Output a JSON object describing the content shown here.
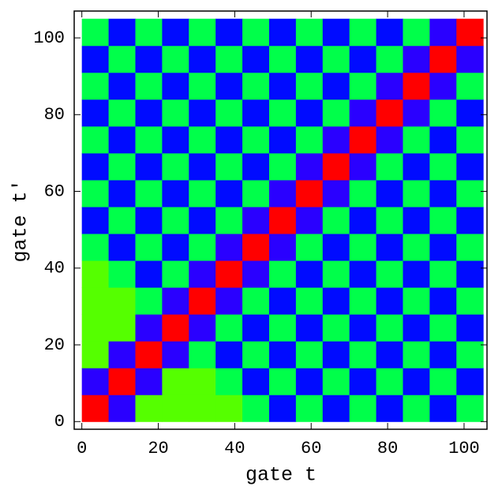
{
  "chart_data": {
    "type": "heatmap",
    "xlabel": "gate t",
    "ylabel": "gate t′",
    "xbins": [
      0,
      7,
      14,
      21,
      28,
      35,
      42,
      49,
      56,
      63,
      70,
      77,
      84,
      91,
      98,
      105
    ],
    "ybins": [
      0,
      7,
      14,
      21,
      28,
      35,
      42,
      49,
      56,
      63,
      70,
      77,
      84,
      91,
      98,
      105
    ],
    "values": [
      [
        1,
        0,
        0.6,
        0.6,
        0.6,
        0.6,
        0.45,
        0.05,
        0.45,
        0.05,
        0.45,
        0.05,
        0.45,
        0.05,
        0.45
      ],
      [
        0,
        1,
        0,
        0.6,
        0.6,
        0.45,
        0.05,
        0.45,
        0.05,
        0.45,
        0.05,
        0.45,
        0.05,
        0.45,
        0.05
      ],
      [
        0.6,
        0,
        1,
        0,
        0.45,
        0.05,
        0.45,
        0.05,
        0.45,
        0.05,
        0.45,
        0.05,
        0.45,
        0.05,
        0.45
      ],
      [
        0.6,
        0.6,
        0,
        1,
        0,
        0.45,
        0.05,
        0.45,
        0.05,
        0.45,
        0.05,
        0.45,
        0.05,
        0.45,
        0.05
      ],
      [
        0.6,
        0.6,
        0.45,
        0,
        1,
        0,
        0.45,
        0.05,
        0.45,
        0.05,
        0.45,
        0.05,
        0.45,
        0.05,
        0.45
      ],
      [
        0.6,
        0.45,
        0.05,
        0.45,
        0,
        1,
        0,
        0.45,
        0.05,
        0.45,
        0.05,
        0.45,
        0.05,
        0.45,
        0.05
      ],
      [
        0.45,
        0.05,
        0.45,
        0.05,
        0.45,
        0,
        1,
        0,
        0.45,
        0.05,
        0.45,
        0.05,
        0.45,
        0.05,
        0.45
      ],
      [
        0.05,
        0.45,
        0.05,
        0.45,
        0.05,
        0.45,
        0,
        1,
        0,
        0.45,
        0.05,
        0.45,
        0.05,
        0.45,
        0.05
      ],
      [
        0.45,
        0.05,
        0.45,
        0.05,
        0.45,
        0.05,
        0.45,
        0,
        1,
        0,
        0.45,
        0.05,
        0.45,
        0.05,
        0.45
      ],
      [
        0.05,
        0.45,
        0.05,
        0.45,
        0.05,
        0.45,
        0.05,
        0.45,
        0,
        1,
        0,
        0.45,
        0.05,
        0.45,
        0.05
      ],
      [
        0.45,
        0.05,
        0.45,
        0.05,
        0.45,
        0.05,
        0.45,
        0.05,
        0.45,
        0,
        1,
        0,
        0.45,
        0.05,
        0.45
      ],
      [
        0.05,
        0.45,
        0.05,
        0.45,
        0.05,
        0.45,
        0.05,
        0.45,
        0.05,
        0.45,
        0,
        1,
        0,
        0.45,
        0.05
      ],
      [
        0.45,
        0.05,
        0.45,
        0.05,
        0.45,
        0.05,
        0.45,
        0.05,
        0.45,
        0.05,
        0.45,
        0,
        1,
        0,
        0.45
      ],
      [
        0.05,
        0.45,
        0.05,
        0.45,
        0.05,
        0.45,
        0.05,
        0.45,
        0.05,
        0.45,
        0.05,
        0.45,
        0,
        1,
        0
      ],
      [
        0.45,
        0.05,
        0.45,
        0.05,
        0.45,
        0.05,
        0.45,
        0.05,
        0.45,
        0.05,
        0.45,
        0.05,
        0.45,
        0,
        1
      ]
    ],
    "colormap": "hue",
    "xlim": [
      -2,
      106
    ],
    "ylim": [
      -2,
      107
    ],
    "xticks": [
      0,
      20,
      40,
      60,
      80,
      100
    ],
    "yticks": [
      0,
      20,
      40,
      60,
      80,
      100
    ]
  }
}
